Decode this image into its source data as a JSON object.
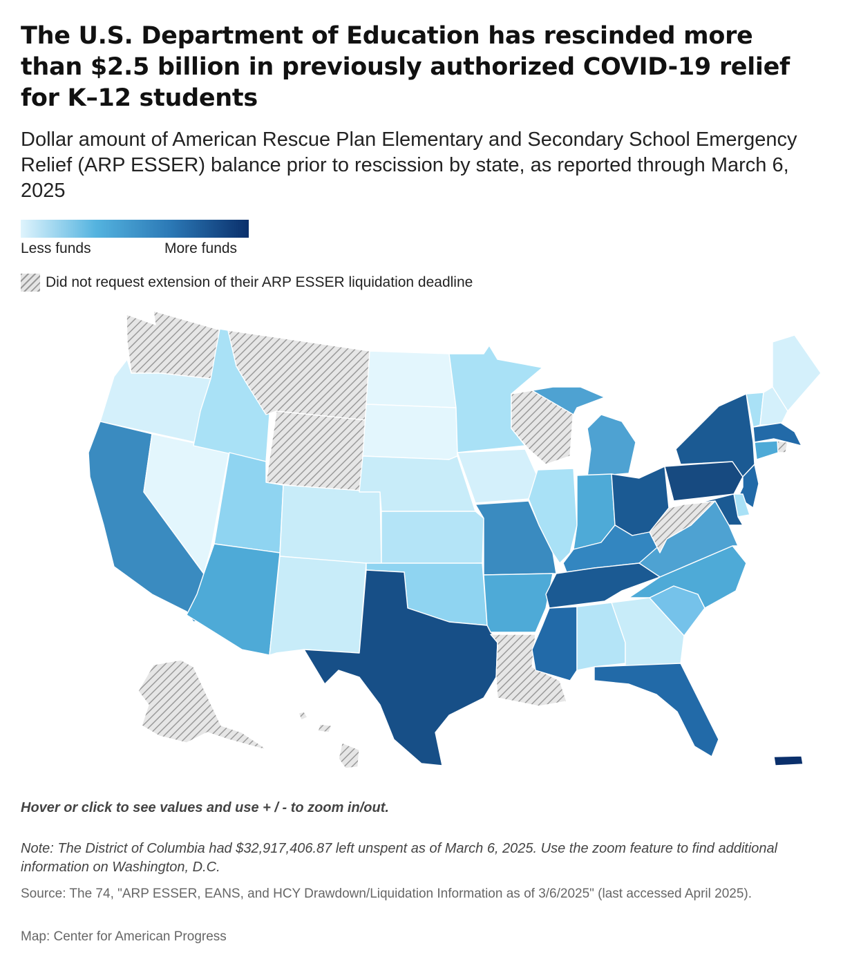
{
  "header": {
    "title": "The U.S. Department of Education has rescinded more than $2.5 billion in previously authorized COVID-19 relief for K–12 students",
    "subtitle": "Dollar amount of American Rescue Plan Elementary and Secondary School Emergency Relief (ARP ESSER) balance prior to rescission by state, as reported through March 6, 2025"
  },
  "legend": {
    "low_label": "Less funds",
    "high_label": "More funds",
    "hatch_label": "Did not request extension of their ARP ESSER liquidation deadline",
    "gradient_colors": [
      "#dff4fd",
      "#54b3df",
      "#2b78b5",
      "#0a2f6b"
    ]
  },
  "map": {
    "hatch_color": "#999999",
    "state_colors": {
      "WA": "hatch",
      "OR": "#d4f0fb",
      "CA": "#3a8bc0",
      "NV": "#e3f6fd",
      "ID": "#a9e1f6",
      "MT": "hatch",
      "WY": "hatch",
      "UT": "#8fd4f1",
      "AZ": "#4eaad7",
      "CO": "#c8ecf9",
      "NM": "#c8ecf9",
      "ND": "#e3f6fd",
      "SD": "#e3f6fd",
      "NE": "#c8ecf9",
      "KS": "#b4e4f7",
      "OK": "#8fd4f1",
      "TX": "#174f87",
      "MN": "#a9e1f6",
      "IA": "#d4f0fb",
      "MO": "#3a8bc0",
      "AR": "#4eaad7",
      "LA": "hatch",
      "WI": "hatch",
      "IL": "#a9e1f6",
      "MI": "#4ea2d2",
      "IN": "#4eaad7",
      "OH": "#1b5a93",
      "KY": "#3386c0",
      "TN": "#1b5a93",
      "MS": "#226aa8",
      "AL": "#b4e4f7",
      "GA": "#c8ecf9",
      "FL": "#226aa8",
      "SC": "#75c2ea",
      "NC": "#4eaad7",
      "VA": "#4ea2d2",
      "WV": "hatch",
      "PA": "#174a80",
      "NY": "#1b5a93",
      "ME": "#d4f0fb",
      "VT": "#a9e1f6",
      "NH": "#d4f0fb",
      "MA": "#226aa8",
      "RI": "hatch",
      "CT": "#4eaad7",
      "NJ": "#226aa8",
      "DE": "#a9e1f6",
      "MD": "#1b5a93",
      "AK": "hatch",
      "HI": "hatch",
      "PR": "#0a2f6b"
    }
  },
  "footer": {
    "hint": "Hover or click to see values and use + / - to zoom in/out.",
    "note": "Note: The District of Columbia had $32,917,406.87 left unspent as of March 6, 2025. Use the zoom feature to find additional information on Washington, D.C.",
    "source": "Source: The 74, \"ARP ESSER, EANS, and HCY Drawdown/Liquidation Information as of 3/6/2025\" (last accessed April 2025).",
    "credit": "Map: Center for American Progress"
  }
}
